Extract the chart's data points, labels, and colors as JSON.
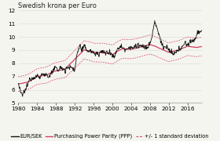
{
  "title": "Swedish krona per Euro",
  "xlim": [
    1980,
    2019
  ],
  "ylim": [
    5,
    12
  ],
  "yticks": [
    5,
    6,
    7,
    8,
    9,
    10,
    11,
    12
  ],
  "xticks": [
    1980,
    1984,
    1988,
    1992,
    1996,
    2000,
    2004,
    2008,
    2012,
    2016
  ],
  "legend": [
    "EUR/SEK",
    "Purchasing Power Parity (PPP)",
    "+/- 1 standard deviation"
  ],
  "eursek_color": "#111111",
  "ppp_color": "#d44060",
  "std_color": "#d44060",
  "bg_color": "#f5f5f0",
  "plot_bg_color": "#f5f5f0",
  "grid_color": "#dddddd",
  "title_fontsize": 6.0,
  "legend_fontsize": 4.8,
  "tick_fontsize": 5.2
}
